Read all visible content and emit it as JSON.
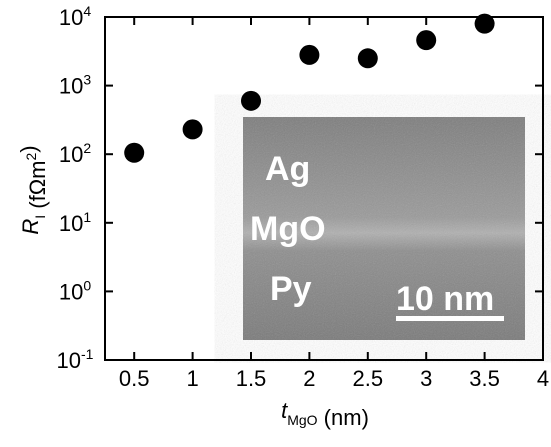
{
  "chart_data": {
    "type": "scatter",
    "xlabel": "t_MgO (nm)",
    "ylabel": "R_I (fΩm^2)",
    "x": [
      0.5,
      1,
      1.5,
      2,
      2.5,
      3,
      3.5
    ],
    "series": [
      {
        "color": "#000000",
        "values": [
          105,
          230,
          600,
          2800,
          2500,
          4600,
          8000
        ]
      }
    ],
    "xlim": [
      0.25,
      4
    ],
    "xticks": [
      0.5,
      1,
      1.5,
      2,
      2.5,
      3,
      3.5,
      4
    ],
    "ylim": [
      0.1,
      10000
    ],
    "yscale": "log",
    "yticks": [
      {
        "value": 0.1,
        "label": "10^-1"
      },
      {
        "value": 1,
        "label": "10^0"
      },
      {
        "value": 10,
        "label": "10^1"
      },
      {
        "value": 100,
        "label": "10^2"
      },
      {
        "value": 1000,
        "label": "10^3"
      },
      {
        "value": 10000,
        "label": "10^4"
      }
    ],
    "grid": false,
    "inset": {
      "labels": [
        "Ag",
        "MgO",
        "Py"
      ],
      "scale_bar": "10 nm"
    }
  }
}
